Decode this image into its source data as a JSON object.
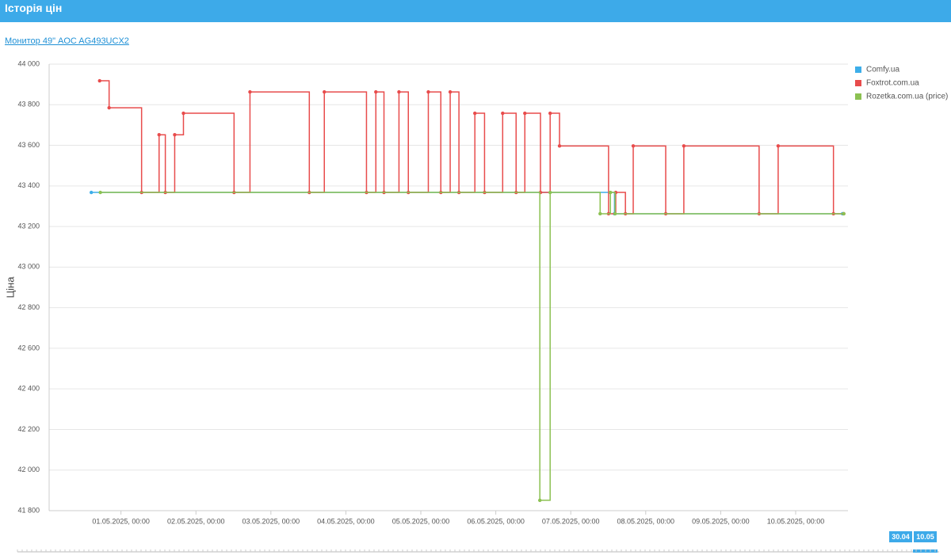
{
  "header": {
    "title": "Історія цін"
  },
  "product_link": "Монитор 49\" AOC AG493UCX2",
  "navigator": {
    "from": "30.04",
    "to": "10.05"
  },
  "chart_data": {
    "type": "step-line",
    "y_label": "Ціна",
    "xlim": [
      "30.04.2025, 01:00",
      "10.05.2025, 16:45"
    ],
    "xticks": [
      "01.05.2025, 00:00",
      "02.05.2025, 00:00",
      "03.05.2025, 00:00",
      "04.05.2025, 00:00",
      "05.05.2025, 00:00",
      "06.05.2025, 00:00",
      "07.05.2025, 00:00",
      "08.05.2025, 00:00",
      "09.05.2025, 00:00",
      "10.05.2025, 00:00"
    ],
    "ylim": [
      41800,
      44000
    ],
    "yticks": [
      {
        "value": 41800,
        "label": "41 800"
      },
      {
        "value": 42000,
        "label": "42 000"
      },
      {
        "value": 42200,
        "label": "42 200"
      },
      {
        "value": 42400,
        "label": "42 400"
      },
      {
        "value": 42600,
        "label": "42 600"
      },
      {
        "value": 42800,
        "label": "42 800"
      },
      {
        "value": 43000,
        "label": "43 000"
      },
      {
        "value": 43200,
        "label": "43 200"
      },
      {
        "value": 43400,
        "label": "43 400"
      },
      {
        "value": 43600,
        "label": "43 600"
      },
      {
        "value": 43800,
        "label": "43 800"
      },
      {
        "value": 44000,
        "label": "44 000"
      }
    ],
    "grid": true,
    "legend": "top-right",
    "series": [
      {
        "name": "Comfy.ua",
        "color": "#3daee9",
        "x": [
          "30.04.2025, 14:30",
          "07.05.2025, 14:00",
          "10.05.2025, 15:00"
        ],
        "values": [
          43368,
          43263,
          43263
        ]
      },
      {
        "name": "Foxtrot.com.ua",
        "color": "#e84c4c",
        "x": [
          "30.04.2025, 17:10",
          "30.04.2025, 20:12",
          "01.05.2025, 06:36",
          "01.05.2025, 12:12",
          "01.05.2025, 14:12",
          "01.05.2025, 17:12",
          "01.05.2025, 20:00",
          "02.05.2025, 12:12",
          "02.05.2025, 17:18",
          "03.05.2025, 12:18",
          "03.05.2025, 17:06",
          "04.05.2025, 06:36",
          "04.05.2025, 09:36",
          "04.05.2025, 12:12",
          "04.05.2025, 17:00",
          "04.05.2025, 20:00",
          "05.05.2025, 02:24",
          "05.05.2025, 06:24",
          "05.05.2025, 09:24",
          "05.05.2025, 12:12",
          "05.05.2025, 17:18",
          "05.05.2025, 20:24",
          "06.05.2025, 02:12",
          "06.05.2025, 06:30",
          "06.05.2025, 09:18",
          "06.05.2025, 14:18",
          "06.05.2025, 17:24",
          "06.05.2025, 20:24",
          "07.05.2025, 12:06",
          "07.05.2025, 14:24",
          "07.05.2025, 17:30",
          "07.05.2025, 20:00",
          "08.05.2025, 06:24",
          "08.05.2025, 12:12",
          "09.05.2025, 12:18",
          "09.05.2025, 18:24",
          "10.05.2025, 12:06",
          "10.05.2025, 15:24"
        ],
        "values": [
          43918,
          43785,
          43368,
          43652,
          43368,
          43652,
          43758,
          43368,
          43863,
          43368,
          43863,
          43368,
          43863,
          43368,
          43863,
          43368,
          43863,
          43368,
          43863,
          43368,
          43758,
          43368,
          43758,
          43368,
          43758,
          43368,
          43758,
          43597,
          43263,
          43368,
          43263,
          43597,
          43263,
          43597,
          43263,
          43597,
          43263,
          43263
        ]
      },
      {
        "name": "Rozetka.com.ua (price)",
        "color": "#8cc152",
        "x": [
          "30.04.2025, 17:24",
          "06.05.2025, 14:06",
          "06.05.2025, 17:24",
          "07.05.2025, 09:24",
          "07.05.2025, 12:42",
          "07.05.2025, 14:12",
          "10.05.2025, 15:24"
        ],
        "values": [
          43368,
          41851,
          43368,
          43263,
          43368,
          43263,
          43263
        ]
      }
    ]
  }
}
